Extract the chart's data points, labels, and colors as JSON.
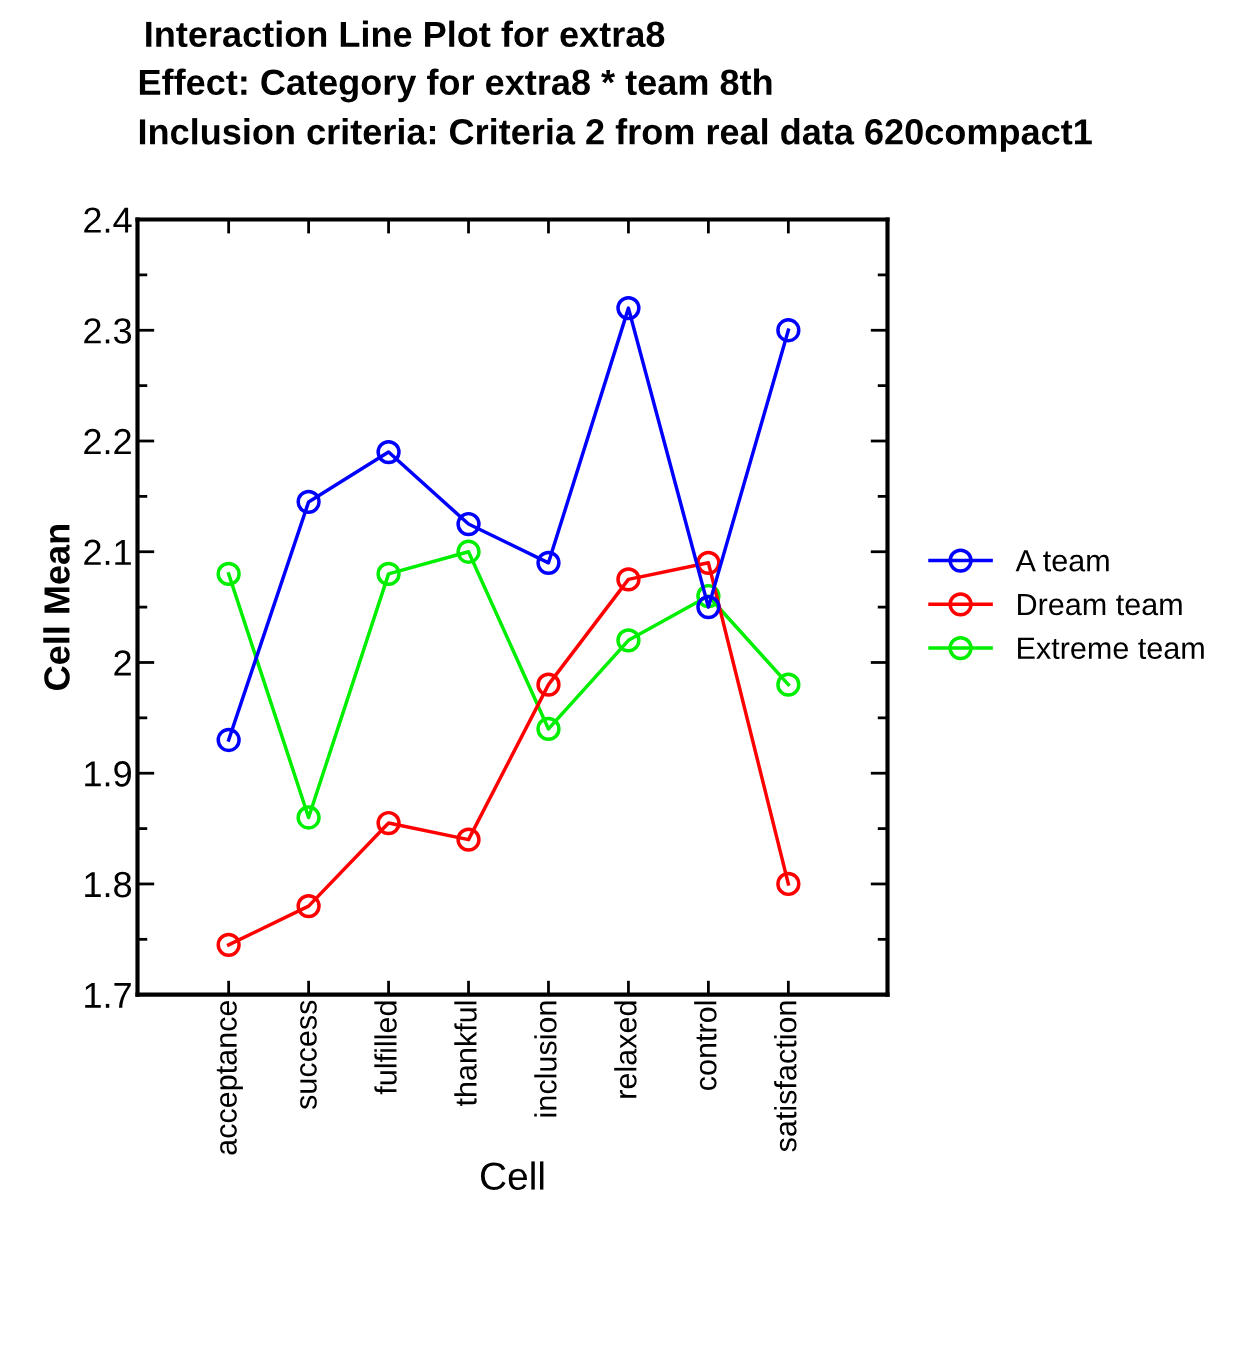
{
  "chart_data": {
    "type": "line",
    "title": "Interaction Line Plot for extra8",
    "subtitle": "Effect: Category for extra8 * team 8th\nInclusion criteria: Criteria 2 from real data 620compact1",
    "xlabel": "Cell",
    "ylabel": "Cell Mean",
    "categories": [
      "acceptance",
      "success",
      "fulfilled",
      "thankful",
      "inclusion",
      "relaxed",
      "control",
      "satisfaction"
    ],
    "series": [
      {
        "name": "A team",
        "color": "#0000ff",
        "values": [
          1.93,
          2.145,
          2.19,
          2.125,
          2.09,
          2.32,
          2.05,
          2.3
        ]
      },
      {
        "name": "Dream team",
        "color": "#ff0000",
        "values": [
          1.745,
          1.78,
          1.855,
          1.84,
          1.98,
          2.075,
          2.09,
          1.8
        ]
      },
      {
        "name": "Extreme team",
        "color": "#00ee00",
        "values": [
          2.08,
          1.86,
          2.08,
          2.1,
          1.94,
          2.02,
          2.06,
          1.98
        ]
      }
    ],
    "ylim": [
      1.7,
      2.4
    ],
    "yticks": [
      {
        "value": 1.7,
        "label": "1.7"
      },
      {
        "value": 1.75,
        "label": null
      },
      {
        "value": 1.8,
        "label": "1.8"
      },
      {
        "value": 1.85,
        "label": null
      },
      {
        "value": 1.9,
        "label": "1.9"
      },
      {
        "value": 1.95,
        "label": null
      },
      {
        "value": 2.0,
        "label": "2"
      },
      {
        "value": 2.05,
        "label": null
      },
      {
        "value": 2.1,
        "label": "2.1"
      },
      {
        "value": 2.15,
        "label": null
      },
      {
        "value": 2.2,
        "label": "2.2"
      },
      {
        "value": 2.25,
        "label": null
      },
      {
        "value": 2.3,
        "label": "2.3"
      },
      {
        "value": 2.35,
        "label": null
      },
      {
        "value": 2.4,
        "label": "2.4"
      }
    ],
    "grid": false,
    "legend": "right",
    "marker": "circle",
    "line_style": "solid"
  }
}
